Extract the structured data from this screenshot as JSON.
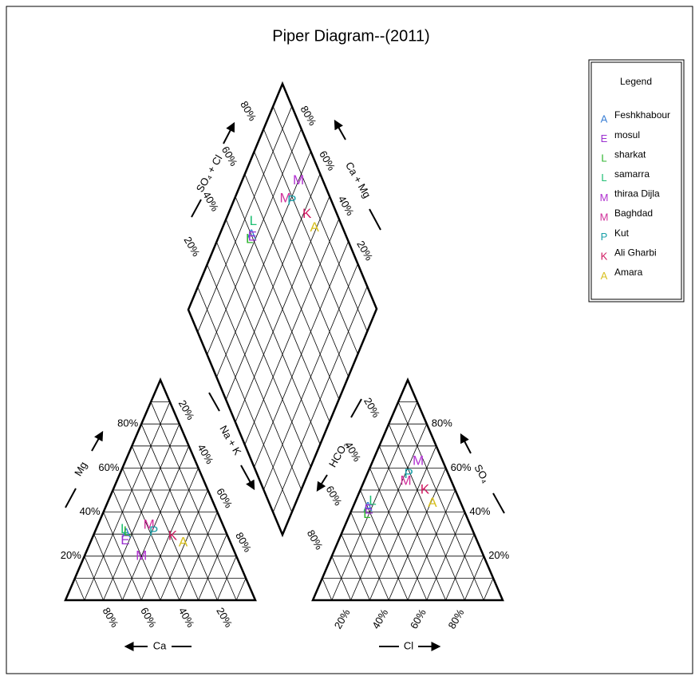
{
  "chart_data": {
    "type": "piper",
    "title": "Piper Diagram--(2011)",
    "legend_title": "Legend",
    "percent_range": [
      0,
      100
    ],
    "grid_step": 10,
    "series": [
      {
        "name": "Feshkhabour",
        "marker": "A",
        "color": "#3a7fd5",
        "mg": 30,
        "na_k": 17,
        "so4": 42,
        "cl": 8
      },
      {
        "name": "mosul",
        "marker": "E",
        "color": "#9b30d0",
        "mg": 27,
        "na_k": 18,
        "so4": 41,
        "cl": 9
      },
      {
        "name": "sharkat",
        "marker": "L",
        "color": "#2fb52f",
        "mg": 31,
        "na_k": 17,
        "so4": 39,
        "cl": 9
      },
      {
        "name": "samarra",
        "marker": "L",
        "color": "#1fbf73",
        "mg": 32,
        "na_k": 15,
        "so4": 45,
        "cl": 9
      },
      {
        "name": "thiraa Dijla",
        "marker": "M",
        "color": "#b030d0",
        "mg": 20,
        "na_k": 30,
        "so4": 63,
        "cl": 24
      },
      {
        "name": "Baghdad",
        "marker": "M",
        "color": "#d0309a",
        "mg": 34,
        "na_k": 27,
        "so4": 54,
        "cl": 22
      },
      {
        "name": "Kut",
        "marker": "P",
        "color": "#1aa0a8",
        "mg": 31,
        "na_k": 31,
        "so4": 57,
        "cl": 22
      },
      {
        "name": "Ali Gharbi",
        "marker": "K",
        "color": "#d01860",
        "mg": 29,
        "na_k": 42,
        "so4": 50,
        "cl": 34
      },
      {
        "name": "Amara",
        "marker": "A",
        "color": "#d8c020",
        "mg": 26,
        "na_k": 49,
        "so4": 44,
        "cl": 41
      }
    ],
    "cation": {
      "mg_label": "Mg",
      "mg_ticks": [
        {
          "value": 20,
          "label": "20%"
        },
        {
          "value": 40,
          "label": "40%"
        },
        {
          "value": 60,
          "label": "60%"
        },
        {
          "value": 80,
          "label": "80%"
        }
      ],
      "ca_label": "Ca",
      "ca_ticks": [
        {
          "value": 20,
          "label": "20%"
        },
        {
          "value": 40,
          "label": "40%"
        },
        {
          "value": 60,
          "label": "60%"
        },
        {
          "value": 80,
          "label": "80%"
        }
      ],
      "na_k_label": "Na + K",
      "na_k_ticks": [
        {
          "value": 20,
          "label": "20%"
        },
        {
          "value": 40,
          "label": "40%"
        },
        {
          "value": 60,
          "label": "60%"
        },
        {
          "value": 80,
          "label": "80%"
        }
      ]
    },
    "anion": {
      "hco3_label": "HCO₃",
      "hco3_ticks": [
        {
          "value": 20,
          "label": "20%"
        },
        {
          "value": 40,
          "label": "40%"
        },
        {
          "value": 60,
          "label": "60%"
        },
        {
          "value": 80,
          "label": "80%"
        }
      ],
      "cl_label": "Cl",
      "cl_ticks": [
        {
          "value": 20,
          "label": "20%"
        },
        {
          "value": 40,
          "label": "40%"
        },
        {
          "value": 60,
          "label": "60%"
        },
        {
          "value": 80,
          "label": "80%"
        }
      ],
      "so4_label": "SO₄",
      "so4_ticks": [
        {
          "value": 20,
          "label": "20%"
        },
        {
          "value": 40,
          "label": "40%"
        },
        {
          "value": 60,
          "label": "60%"
        },
        {
          "value": 80,
          "label": "80%"
        }
      ]
    },
    "diamond": {
      "so4_cl_label": "SO₄ + Cl",
      "so4_cl_ticks": [
        {
          "value": 20,
          "label": "20%"
        },
        {
          "value": 40,
          "label": "40%"
        },
        {
          "value": 60,
          "label": "60%"
        },
        {
          "value": 80,
          "label": "80%"
        }
      ],
      "ca_mg_label": "Ca + Mg",
      "ca_mg_ticks": [
        {
          "value": 20,
          "label": "20%"
        },
        {
          "value": 40,
          "label": "40%"
        },
        {
          "value": 60,
          "label": "60%"
        },
        {
          "value": 80,
          "label": "80%"
        }
      ]
    }
  }
}
